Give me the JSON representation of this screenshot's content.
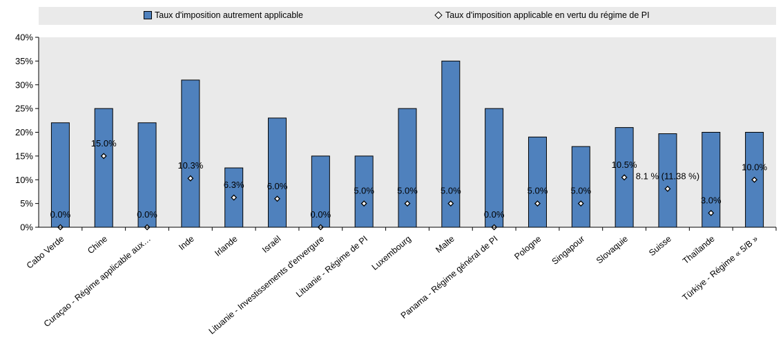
{
  "chart_data": {
    "type": "bar",
    "categories": [
      "Cabo Verde",
      "Chine",
      "Curaçao - Régime applicable aux…",
      "Inde",
      "Irlande",
      "Israël",
      "Lituanie - Investissements d'envergure",
      "Lituanie - Régime de PI",
      "Luxembourg",
      "Malte",
      "Panama - Régime général de PI",
      "Pologne",
      "Singapour",
      "Slovaquie",
      "Suisse",
      "Thaïlande",
      "Türkiye - Régime « 5/B »"
    ],
    "series": [
      {
        "name": "Taux d'imposition autrement applicable",
        "type": "bar",
        "color": "#4f81bd",
        "values": [
          22,
          25,
          22,
          31,
          12.5,
          23,
          15,
          15,
          25,
          35,
          25,
          19,
          17,
          21,
          19.7,
          20,
          20
        ]
      },
      {
        "name": "Taux d'imposition applicable en vertu du régime de PI",
        "type": "scatter",
        "marker": "diamond",
        "values": [
          0,
          15,
          0,
          10.3,
          6.25,
          6,
          0,
          5,
          5,
          5,
          0,
          5,
          5,
          10.5,
          8.1,
          3,
          10
        ],
        "labels": [
          "0.0%",
          "15.0%",
          "0.0%",
          "10.3%",
          "6.3%",
          "6.0%",
          "0.0%",
          "5.0%",
          "5.0%",
          "5.0%",
          "0.0%",
          "5.0%",
          "5.0%",
          "10.5%",
          "8.1 % (11.38 %)",
          "3.0%",
          "10.0%"
        ]
      }
    ],
    "yticks": [
      "0%",
      "5%",
      "10%",
      "15%",
      "20%",
      "25%",
      "30%",
      "35%",
      "40%"
    ],
    "ylim": [
      0,
      40
    ],
    "grid": false,
    "legend_position": "top"
  }
}
